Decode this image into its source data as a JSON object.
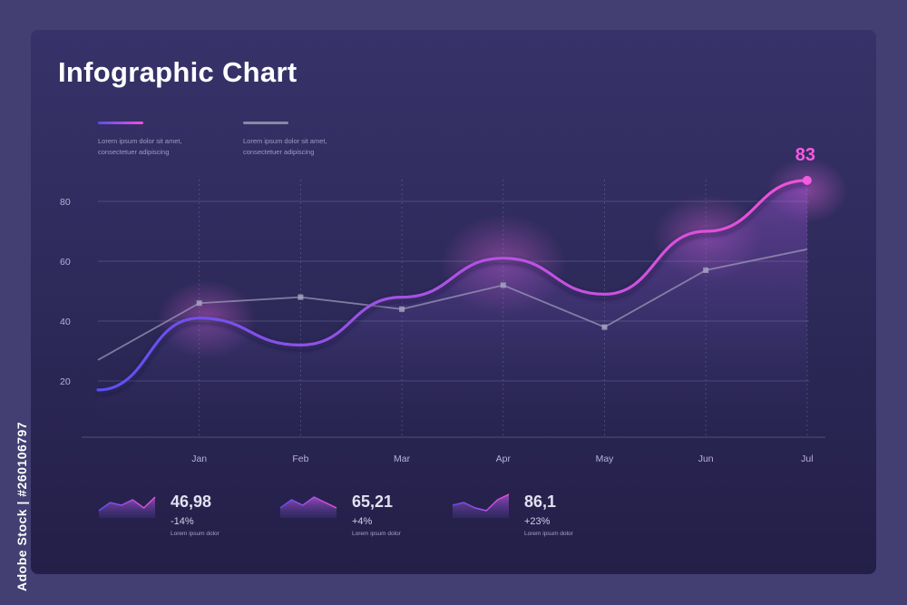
{
  "title": "Infographic Chart",
  "legend": [
    {
      "text": "Lorem ipsum dolor sit amet,\nconsectetuer adipiscing",
      "color_from": "#5a4ff0",
      "color_to": "#f050d8"
    },
    {
      "text": "Lorem ipsum dolor sit amet,\nconsectetuer adipiscing",
      "color": "#8a87a8"
    }
  ],
  "side_label": "Adobe Stock | #260106797",
  "colors": {
    "primary_from": "#5a4ff0",
    "primary_to": "#f050d8",
    "secondary": "#9b98b8",
    "highlight_value": "#f45be0"
  },
  "chart_data": {
    "type": "line",
    "categories": [
      "Jan",
      "Feb",
      "Mar",
      "Apr",
      "May",
      "Jun",
      "Jul"
    ],
    "y_ticks": [
      20,
      40,
      60,
      80
    ],
    "ylim": [
      0,
      90
    ],
    "grid": true,
    "series": [
      {
        "style": "smooth-gradient-area",
        "x": [
          0,
          1,
          2,
          3,
          4,
          5,
          6,
          7
        ],
        "values": [
          17,
          41,
          32,
          48,
          61,
          49,
          70,
          87
        ]
      },
      {
        "style": "thin-gray-markers",
        "x": [
          0,
          1,
          2,
          3,
          4,
          5,
          6,
          7
        ],
        "values": [
          27,
          46,
          48,
          44,
          52,
          38,
          57,
          64
        ]
      }
    ],
    "annotation": {
      "text": "83"
    }
  },
  "stats": [
    {
      "value": "46,98",
      "change": "-14%",
      "caption": "Lorem ipsum dolor",
      "spark": [
        3,
        6,
        5,
        7,
        4,
        8
      ]
    },
    {
      "value": "65,21",
      "change": "+4%",
      "caption": "Lorem ipsum dolor",
      "spark": [
        4,
        7,
        5,
        8,
        6,
        4
      ]
    },
    {
      "value": "86,1",
      "change": "+23%",
      "caption": "Lorem ipsum dolor",
      "spark": [
        5,
        6,
        4,
        3,
        7,
        9
      ]
    }
  ]
}
